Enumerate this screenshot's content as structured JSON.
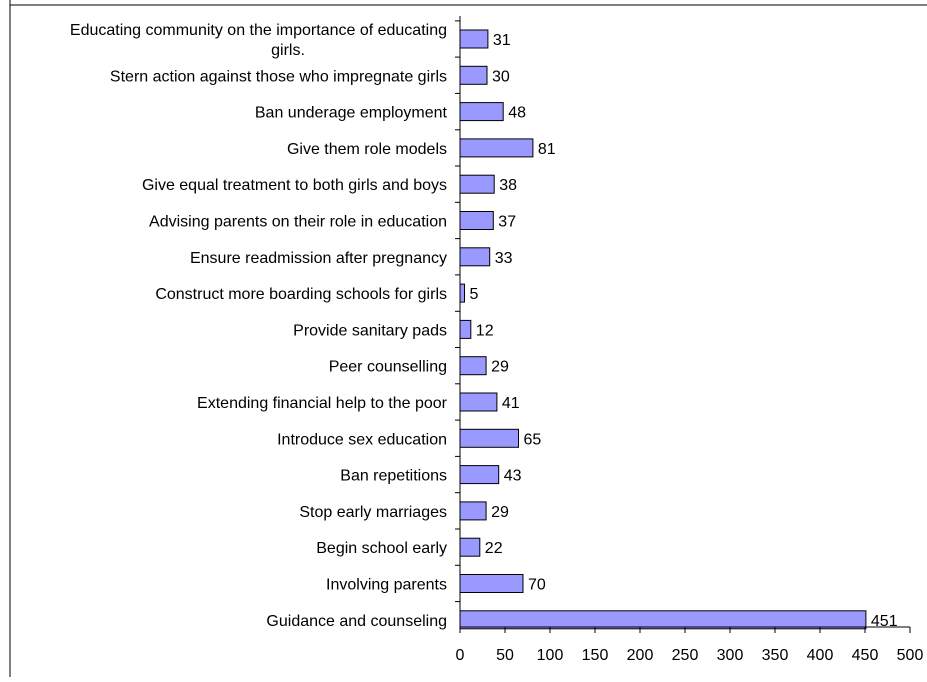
{
  "chart_data": {
    "type": "bar",
    "orientation": "horizontal",
    "categories": [
      "Educating community on the importance of educating girls.",
      "Stern action against those who impregnate girls",
      "Ban underage employment",
      "Give them role models",
      "Give equal treatment to both girls and boys",
      "Advising parents on their role in education",
      "Ensure readmission after pregnancy",
      "Construct more boarding schools for girls",
      "Provide sanitary pads",
      "Peer counselling",
      "Extending financial help to the poor",
      "Introduce sex education",
      "Ban repetitions",
      "Stop early marriages",
      "Begin school early",
      "Involving parents",
      "Guidance and counseling"
    ],
    "values": [
      31,
      30,
      48,
      81,
      38,
      37,
      33,
      5,
      12,
      29,
      41,
      65,
      43,
      29,
      22,
      70,
      451
    ],
    "xlim": [
      0,
      500
    ],
    "xticks": [
      0,
      50,
      100,
      150,
      200,
      250,
      300,
      350,
      400,
      450,
      500
    ],
    "grid": false,
    "legend": "none",
    "colors": {
      "bar_fill": "#9999ff",
      "bar_stroke": "#000000",
      "axis": "#000000",
      "frame": "#000000"
    }
  }
}
